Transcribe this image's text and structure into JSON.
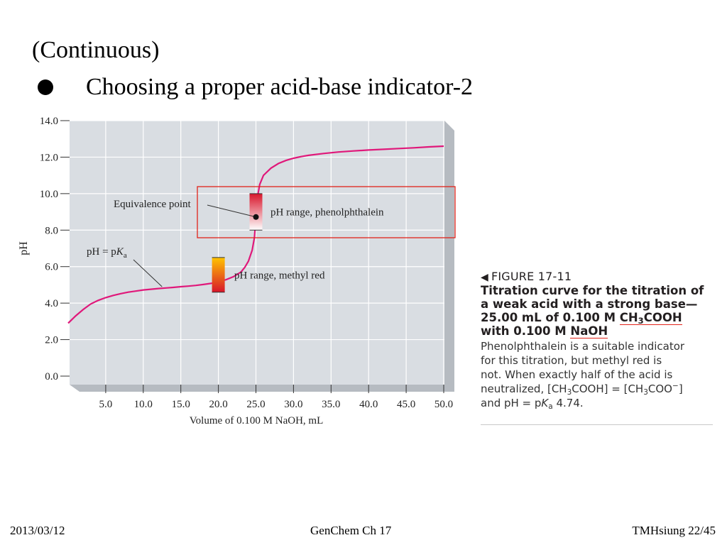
{
  "slide": {
    "title": "(Continuous)",
    "bullet": "Choosing a proper acid-base indicator-2"
  },
  "chart_data": {
    "type": "line",
    "title": "",
    "xlabel": "Volume of 0.100 M NaOH, mL",
    "ylabel": "pH",
    "xlim": [
      0,
      50
    ],
    "ylim": [
      0,
      14
    ],
    "x_ticks": [
      "5.0",
      "10.0",
      "15.0",
      "20.0",
      "25.0",
      "30.0",
      "35.0",
      "40.0",
      "45.0",
      "50.0"
    ],
    "y_ticks": [
      "0.0",
      "2.0",
      "4.0",
      "6.0",
      "8.0",
      "10.0",
      "12.0",
      "14.0"
    ],
    "grid": true,
    "series": [
      {
        "color": "#e0187a",
        "x": [
          0,
          1,
          2,
          3,
          4,
          5,
          6,
          7,
          8,
          9,
          10,
          11,
          12,
          13,
          14,
          15,
          16,
          17,
          18,
          19,
          20,
          21,
          22,
          23,
          23.5,
          24,
          24.5,
          24.8,
          25,
          25.2,
          25.5,
          26,
          27,
          28,
          29,
          30,
          31,
          32,
          34,
          36,
          38,
          40,
          42,
          44,
          46,
          48,
          50
        ],
        "y": [
          2.9,
          3.3,
          3.65,
          3.95,
          4.15,
          4.3,
          4.42,
          4.52,
          4.6,
          4.66,
          4.72,
          4.76,
          4.8,
          4.83,
          4.86,
          4.9,
          4.93,
          4.97,
          5.02,
          5.08,
          5.17,
          5.28,
          5.45,
          5.7,
          5.95,
          6.3,
          6.9,
          7.6,
          8.72,
          9.8,
          10.5,
          11.0,
          11.4,
          11.65,
          11.82,
          11.94,
          12.03,
          12.1,
          12.2,
          12.28,
          12.34,
          12.39,
          12.43,
          12.47,
          12.51,
          12.56,
          12.6
        ]
      }
    ],
    "indicators": [
      {
        "name": "pH range, phenolphthalein",
        "x": 25.0,
        "ph_low": 8.0,
        "ph_high": 10.0,
        "color_top": "#d8152b",
        "color_bottom": "#ffffff"
      },
      {
        "name": "pH range, methyl red",
        "x": 20.0,
        "ph_low": 4.6,
        "ph_high": 6.5,
        "color_top": "#ffc400",
        "color_bottom": "#d8152b"
      }
    ],
    "annotations": [
      {
        "text": "Equivalence point",
        "x": 25.0,
        "y": 8.72
      },
      {
        "text_main": "pH = p",
        "text_italic": "K",
        "text_sub": "a",
        "x": 12.5,
        "y": 4.9
      }
    ]
  },
  "figure": {
    "label": "FIGURE 17-11",
    "title_l1": "Titration curve for the titration of",
    "title_l2": "a weak acid with a strong base—",
    "title_l3a": "25.00 mL of 0.100 M ",
    "title_l3b_pre": "CH",
    "title_l3b_sub": "3",
    "title_l3b_post": "COOH",
    "title_l4a": "with 0.100 M ",
    "title_l4b": "NaOH",
    "desc_l1": "Phenolphthalein is a suitable indicator",
    "desc_l2": "for this titration, but methyl red is",
    "desc_l3": "not. When exactly half of the acid is",
    "desc_l4a": "neutralized, [CH",
    "desc_l4b": "3",
    "desc_l4c": "COOH] = [CH",
    "desc_l4d": "3",
    "desc_l4e": "COO",
    "desc_l4f": "−",
    "desc_l4g": "]",
    "desc_l5a": "and pH = p",
    "desc_l5b": "K",
    "desc_l5c": "a",
    "desc_l5d": " 4.74."
  },
  "footer": {
    "date": "2013/03/12",
    "course": "GenChem Ch 17",
    "page": "TMHsiung 22/45"
  },
  "colors": {
    "plot_bg": "#d9dde2",
    "grid": "#ffffff",
    "curve": "#e0187a",
    "highlight_box": "#e2231a"
  }
}
